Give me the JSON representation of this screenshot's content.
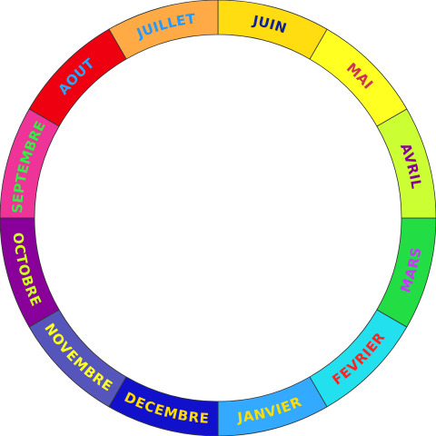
{
  "months": [
    {
      "name": "JANVIER",
      "fill": "#33aaff",
      "text": "#ffdd00"
    },
    {
      "name": "FEVRIER",
      "fill": "#22e0ee",
      "text": "#ff2222"
    },
    {
      "name": "MARS",
      "fill": "#22dd44",
      "text": "#cc33ff"
    },
    {
      "name": "AVRIL",
      "fill": "#ccff33",
      "text": "#880099"
    },
    {
      "name": "MAI",
      "fill": "#ffff22",
      "text": "#cc3355"
    },
    {
      "name": "JUIN",
      "fill": "#ffdd11",
      "text": "#112299"
    },
    {
      "name": "JUILLET",
      "fill": "#ffaa44",
      "text": "#2299ff"
    },
    {
      "name": "AOUT",
      "fill": "#ee0011",
      "text": "#22aaff"
    },
    {
      "name": "SEPTEMBRE",
      "fill": "#ee3399",
      "text": "#33ee44"
    },
    {
      "name": "OCTOBRE",
      "fill": "#880099",
      "text": "#ccff22"
    },
    {
      "name": "NOVEMBRE",
      "fill": "#5555bb",
      "text": "#ffff22"
    },
    {
      "name": "DECEMBRE",
      "fill": "#1111cc",
      "text": "#ffdd00"
    }
  ],
  "divider_color": "#333333"
}
